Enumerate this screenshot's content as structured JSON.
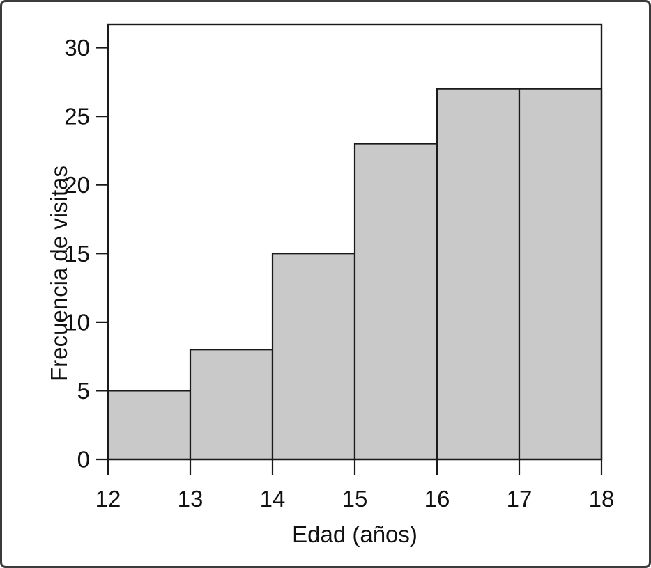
{
  "figure": {
    "background": "#ffffff",
    "border_color": "#3b3b3b"
  },
  "chart_data": {
    "type": "bar",
    "subtype": "histogram",
    "title": "",
    "xlabel": "Edad (años)",
    "ylabel": "Frecuencia de visitas",
    "bin_edges": [
      12,
      13,
      14,
      15,
      16,
      17,
      18
    ],
    "values": [
      5,
      8,
      15,
      23,
      27,
      27
    ],
    "bins": [
      {
        "from": 12,
        "to": 13,
        "frequency": 5
      },
      {
        "from": 13,
        "to": 14,
        "frequency": 8
      },
      {
        "from": 14,
        "to": 15,
        "frequency": 15
      },
      {
        "from": 15,
        "to": 16,
        "frequency": 23
      },
      {
        "from": 16,
        "to": 17,
        "frequency": 27
      },
      {
        "from": 17,
        "to": 18,
        "frequency": 27
      }
    ],
    "x_ticks": [
      12,
      13,
      14,
      15,
      16,
      17,
      18
    ],
    "y_ticks": [
      0,
      5,
      10,
      15,
      20,
      25,
      30
    ],
    "xlim": [
      12,
      18
    ],
    "ylim": [
      0,
      31.7
    ],
    "grid": false,
    "legend": false,
    "bar_fill": "#c9c9c9",
    "bar_stroke": "#1a1a1a",
    "axis_color": "#1a1a1a",
    "text_color": "#111111"
  }
}
